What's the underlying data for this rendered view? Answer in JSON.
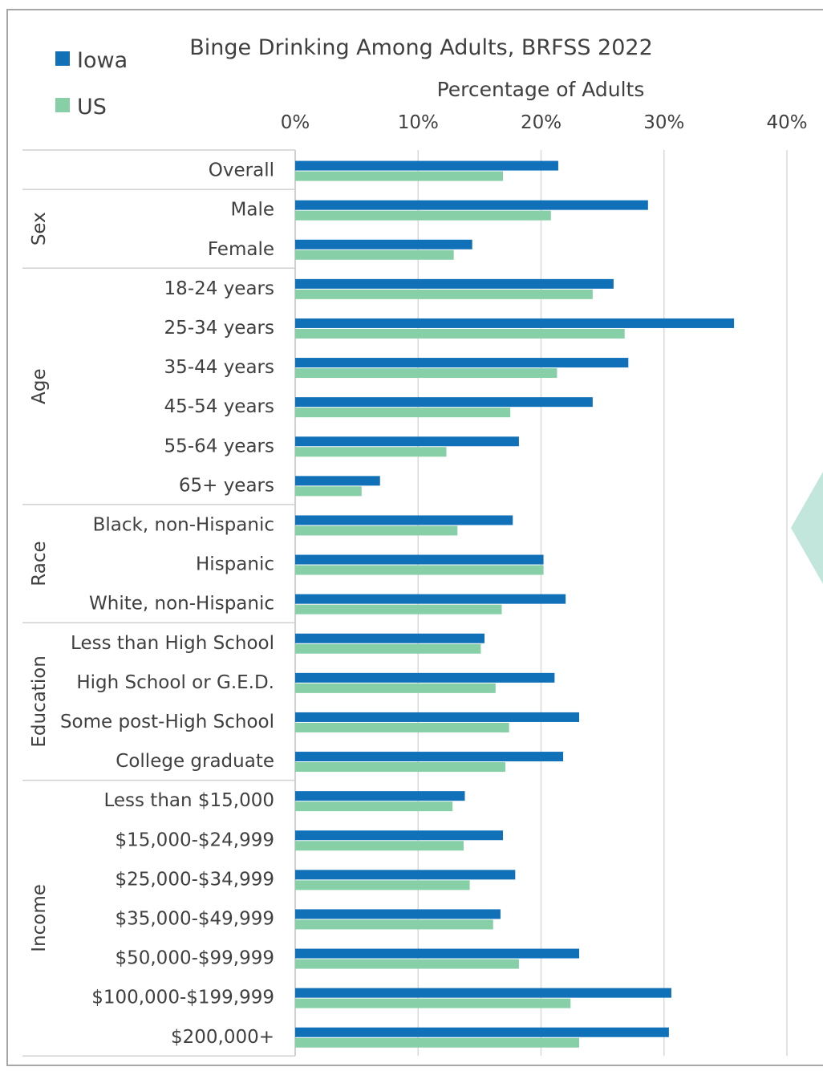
{
  "chart_data": {
    "type": "bar",
    "orientation": "horizontal",
    "title": "Binge Drinking Among Adults, BRFSS 2022",
    "xlabel": "Percentage of Adults",
    "xlim": [
      0,
      40
    ],
    "x_ticks": [
      "0%",
      "10%",
      "20%",
      "30%",
      "40%"
    ],
    "x_tick_values": [
      0,
      10,
      20,
      30,
      40
    ],
    "grid": true,
    "legend_position": "top-left",
    "groups": [
      {
        "label": "",
        "rows": [
          "Overall"
        ]
      },
      {
        "label": "Sex",
        "rows": [
          "Male",
          "Female"
        ]
      },
      {
        "label": "Age",
        "rows": [
          "18-24 years",
          "25-34 years",
          "35-44 years",
          "45-54 years",
          "55-64 years",
          "65+ years"
        ]
      },
      {
        "label": "Race",
        "rows": [
          "Black, non-Hispanic",
          "Hispanic",
          "White, non-Hispanic"
        ]
      },
      {
        "label": "Education",
        "rows": [
          "Less than High School",
          "High School or G.E.D.",
          "Some post-High School",
          "College graduate"
        ]
      },
      {
        "label": "Income",
        "rows": [
          "Less than $15,000",
          "$15,000-$24,999",
          "$25,000-$34,999",
          "$35,000-$49,999",
          "$50,000-$99,999",
          "$100,000-$199,999",
          "$200,000+"
        ]
      }
    ],
    "categories": [
      "Overall",
      "Male",
      "Female",
      "18-24 years",
      "25-34 years",
      "35-44 years",
      "45-54 years",
      "55-64 years",
      "65+ years",
      "Black, non-Hispanic",
      "Hispanic",
      "White, non-Hispanic",
      "Less than High School",
      "High School or G.E.D.",
      "Some post-High School",
      "College graduate",
      "Less than $15,000",
      "$15,000-$24,999",
      "$25,000-$34,999",
      "$35,000-$49,999",
      "$50,000-$99,999",
      "$100,000-$199,999",
      "$200,000+"
    ],
    "series": [
      {
        "name": "Iowa",
        "color": "#1070b8",
        "values": [
          21.4,
          28.7,
          14.4,
          25.9,
          35.7,
          27.1,
          24.2,
          18.2,
          6.9,
          17.7,
          20.2,
          22.0,
          15.4,
          21.1,
          23.1,
          21.8,
          13.8,
          16.9,
          17.9,
          16.7,
          23.1,
          30.6,
          30.4
        ]
      },
      {
        "name": "US",
        "color": "#86cfa7",
        "values": [
          16.9,
          20.8,
          12.9,
          24.2,
          26.8,
          21.3,
          17.5,
          12.3,
          5.4,
          13.2,
          20.2,
          16.8,
          15.1,
          16.3,
          17.4,
          17.1,
          12.8,
          13.7,
          14.2,
          16.1,
          18.2,
          22.4,
          23.1
        ]
      }
    ]
  }
}
